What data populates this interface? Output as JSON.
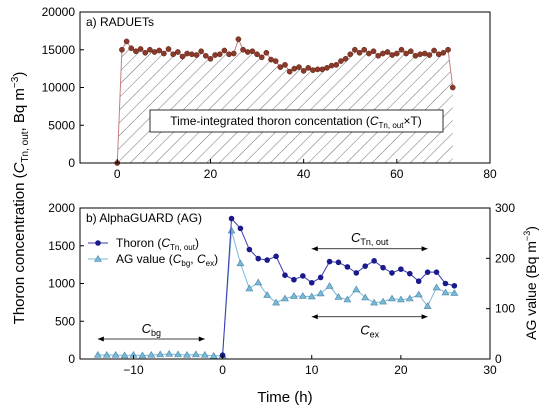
{
  "figure": {
    "ylabel_left_prefix": "Thoron concentration (",
    "ylabel_left_var": "C",
    "ylabel_left_sub": "Tn, out",
    "ylabel_left_suffix": ", Bq m",
    "ylabel_left_sup": "−3",
    "ylabel_left_close": ")",
    "xlabel": "Time (h)"
  },
  "chart_data": [
    {
      "type": "area",
      "panel_label": "a) RADUETs",
      "annotation": {
        "prefix": "Time-integrated thoron concentation (",
        "var": "C",
        "sub": "Tn, out",
        "suffix": "×T)"
      },
      "xlim": [
        -8,
        80
      ],
      "ylim": [
        0,
        20000
      ],
      "xticks": [
        0,
        20,
        40,
        60,
        80
      ],
      "yticks": [
        0,
        5000,
        10000,
        15000,
        20000
      ],
      "grid": false,
      "colors": {
        "marker_fill": "#8b3a2a",
        "marker_edge": "#5a2418",
        "line": "#c08080",
        "hatch": "#707070"
      },
      "series": [
        {
          "x": [
            0,
            1,
            2,
            3,
            4,
            5,
            6,
            7,
            8,
            9,
            10,
            11,
            12,
            13,
            14,
            15,
            16,
            17,
            18,
            19,
            20,
            21,
            22,
            23,
            24,
            25,
            26,
            27,
            28,
            29,
            30,
            31,
            32,
            33,
            34,
            35,
            36,
            37,
            38,
            39,
            40,
            41,
            42,
            43,
            44,
            45,
            46,
            47,
            48,
            49,
            50,
            51,
            52,
            53,
            54,
            55,
            56,
            57,
            58,
            59,
            60,
            61,
            62,
            63,
            64,
            65,
            66,
            67,
            68,
            69,
            70,
            71,
            72
          ],
          "values": [
            0,
            15000,
            16100,
            15200,
            14800,
            15100,
            14600,
            15000,
            14700,
            14900,
            14500,
            15100,
            14400,
            14700,
            14100,
            14500,
            14400,
            14300,
            14800,
            14200,
            13800,
            14300,
            14400,
            14900,
            14400,
            14500,
            16400,
            15000,
            14700,
            14800,
            14400,
            14000,
            14600,
            13700,
            13500,
            12700,
            13000,
            12100,
            12500,
            12700,
            12200,
            12600,
            12300,
            12400,
            12400,
            12600,
            12900,
            13000,
            13500,
            13800,
            14400,
            15000,
            14600,
            15000,
            14500,
            14800,
            14200,
            14500,
            14700,
            14300,
            14500,
            15000,
            14500,
            14800,
            14200,
            14400,
            14500,
            14300,
            14900,
            14400,
            14600,
            15000,
            10000
          ]
        }
      ]
    },
    {
      "type": "line",
      "panel_label": "b) AlphaGUARD (AG)",
      "ylabel_right": {
        "prefix": "AG value (Bq m",
        "sup": "−3",
        "close": ")"
      },
      "xlim": [
        -16,
        30
      ],
      "ylim": [
        0,
        2000
      ],
      "ylim_right": [
        0,
        300
      ],
      "xticks": [
        -10,
        0,
        10,
        20,
        30
      ],
      "yticks": [
        0,
        500,
        1000,
        1500,
        2000
      ],
      "yticks_right": [
        0,
        100,
        200,
        300
      ],
      "grid": false,
      "legend": "top-left",
      "colors": {
        "thoron": "#1a1a8c",
        "thoron_line": "#3a3ab0",
        "ag": "#7ab8d8",
        "ag_edge": "#4a88aa"
      },
      "series": [
        {
          "name": {
            "prefix": "Thoron (",
            "var": "C",
            "sub": "Tn, out",
            "suffix": ")"
          },
          "axis": "left",
          "x": [
            0,
            1,
            2,
            3,
            4,
            5,
            6,
            7,
            8,
            9,
            10,
            11,
            12,
            13,
            14,
            15,
            16,
            17,
            18,
            19,
            20,
            21,
            22,
            23,
            24,
            25,
            26
          ],
          "values": [
            50,
            1860,
            1730,
            1450,
            1330,
            1310,
            1360,
            1110,
            1050,
            1100,
            1010,
            1080,
            1290,
            1280,
            1220,
            1140,
            1230,
            1300,
            1210,
            1140,
            1190,
            1130,
            1030,
            1150,
            1150,
            1000,
            970
          ]
        },
        {
          "name": {
            "prefix": "AG value (",
            "var1": "C",
            "sub1": "bg",
            "mid": ", ",
            "var2": "C",
            "sub2": "ex",
            "suffix": ")"
          },
          "axis": "right",
          "x": [
            -14,
            -13,
            -12,
            -11,
            -10,
            -9,
            -8,
            -7,
            -6,
            -5,
            -4,
            -3,
            -2,
            -1,
            0,
            1,
            2,
            3,
            4,
            5,
            6,
            7,
            8,
            9,
            10,
            11,
            12,
            13,
            14,
            15,
            16,
            17,
            18,
            19,
            20,
            21,
            22,
            23,
            24,
            25,
            26
          ],
          "values": [
            8,
            8,
            8,
            7,
            8,
            7,
            8,
            9,
            10,
            9,
            8,
            9,
            8,
            6,
            7,
            255,
            190,
            140,
            152,
            127,
            112,
            120,
            125,
            125,
            124,
            130,
            145,
            123,
            118,
            138,
            122,
            112,
            114,
            120,
            118,
            120,
            128,
            105,
            142,
            132,
            131
          ]
        }
      ],
      "annotations": [
        {
          "var": "C",
          "sub": "bg",
          "x_range": [
            -14,
            -2
          ]
        },
        {
          "var": "C",
          "sub": "Tn, out",
          "x_range": [
            10,
            23
          ],
          "axis": "left",
          "y": 1460
        },
        {
          "var": "C",
          "sub": "ex",
          "x_range": [
            10,
            23
          ],
          "axis": "left",
          "y": 560
        }
      ]
    }
  ]
}
